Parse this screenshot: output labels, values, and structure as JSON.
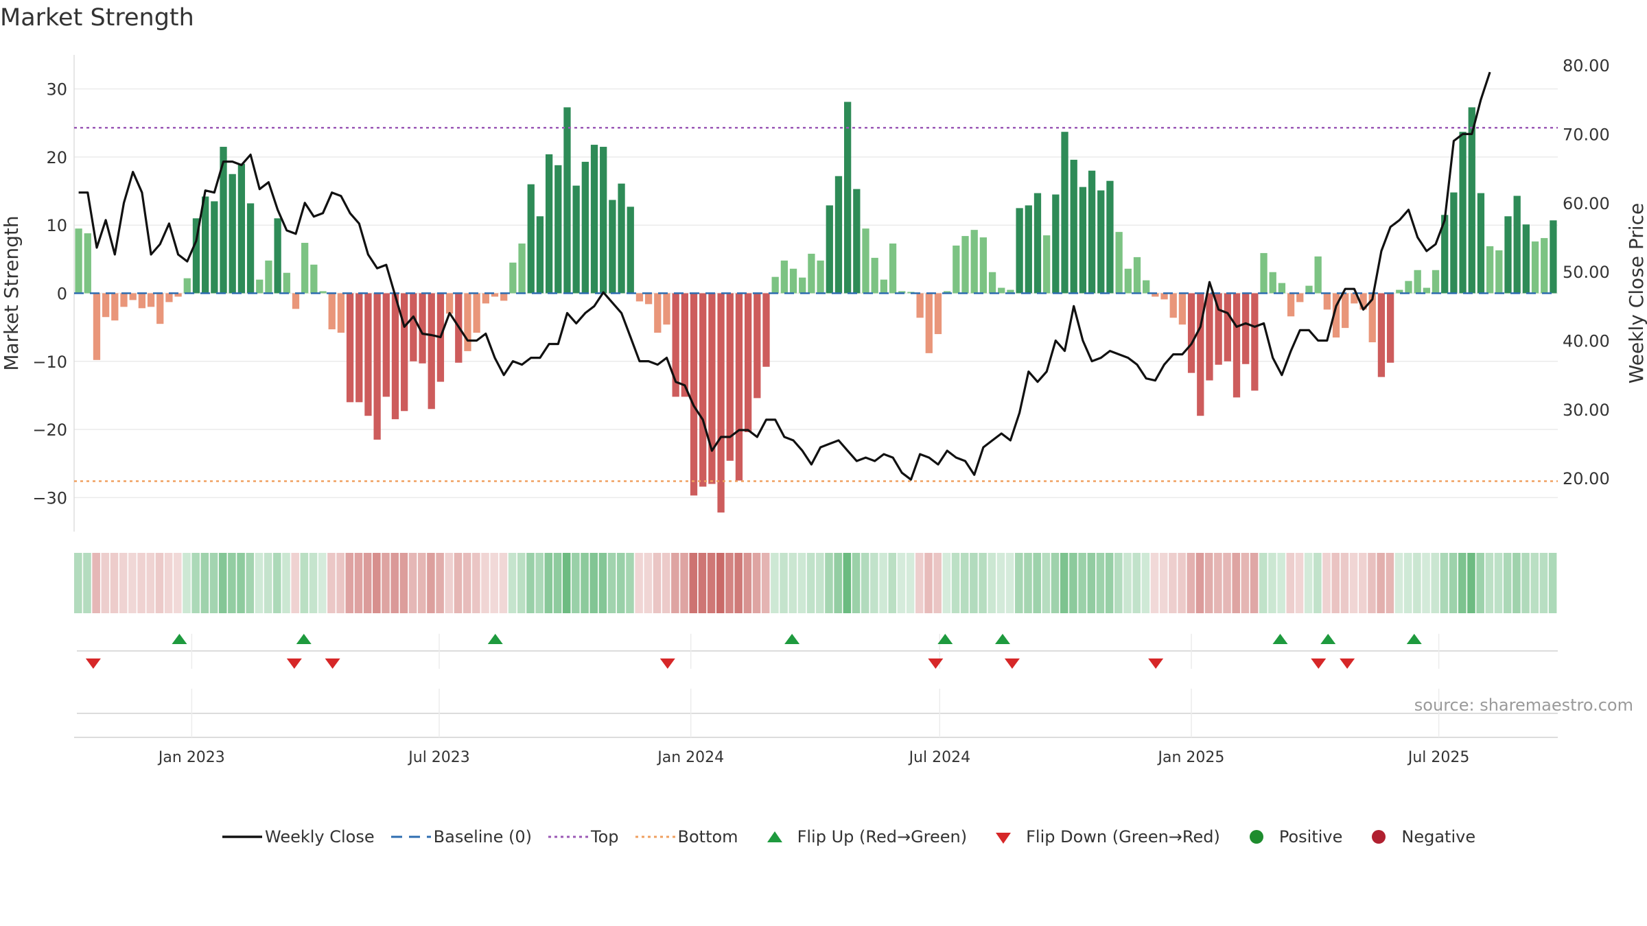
{
  "title": "Market Strength",
  "source_text": "source: sharemaestro.com",
  "legend": [
    {
      "label": "Weekly Close",
      "symbol": "solid-line",
      "color": "#111111"
    },
    {
      "label": "Baseline (0)",
      "symbol": "dash-line",
      "color": "#2e6db0"
    },
    {
      "label": "Top",
      "symbol": "dot-line",
      "color": "#9b59b6"
    },
    {
      "label": "Bottom",
      "symbol": "dot-line",
      "color": "#f0a060"
    },
    {
      "label": "Flip Up (Red→Green)",
      "symbol": "triangle-up",
      "color": "#1e9a3e"
    },
    {
      "label": "Flip Down (Green→Red)",
      "symbol": "triangle-down",
      "color": "#d62728"
    },
    {
      "label": "Positive",
      "symbol": "circle",
      "color": "#1e8c2e"
    },
    {
      "label": "Negative",
      "symbol": "circle",
      "color": "#b02030"
    }
  ],
  "chart_data": {
    "type": "bar",
    "ylabel": "Market Strength",
    "y2label": "Weekly Close Price",
    "ylim": [
      -35,
      35
    ],
    "y_ticks": [
      30,
      20,
      10,
      0,
      -10,
      -20,
      -30
    ],
    "y_tick_labels": [
      "30",
      "20",
      "10",
      "0",
      "−10",
      "−20",
      "−30"
    ],
    "y2lim": [
      12.25,
      81.5
    ],
    "y2_ticks": [
      80,
      70,
      60,
      50,
      40,
      30,
      20
    ],
    "y2_tick_labels": [
      "80.00",
      "70.00",
      "60.00",
      "50.00",
      "40.00",
      "30.00",
      "20.00"
    ],
    "x_start": "2022-10-07",
    "x_end": "2025-09-26",
    "x_ticks": [
      "2023-01-01",
      "2023-07-01",
      "2024-01-01",
      "2024-07-01",
      "2025-01-01",
      "2025-07-01"
    ],
    "x_tick_labels": [
      "Jan 2023",
      "Jul 2023",
      "Jan 2024",
      "Jul 2024",
      "Jan 2025",
      "Jul 2025"
    ],
    "top_threshold": 24.3,
    "bottom_threshold": -27.6,
    "baseline": 0,
    "grid": true,
    "legend_position": "bottom",
    "colors": {
      "strong_pos": "#2e8b57",
      "weak_pos": "#7cc383",
      "strong_neg": "#cd5c5c",
      "weak_neg": "#e9967a",
      "line": "#111111",
      "baseline": "#2e6db0",
      "top": "#9b59b6",
      "bottom": "#f0a060",
      "flip_up": "#1e9a3e",
      "flip_down": "#d62728"
    },
    "strength": [
      9.5,
      8.8,
      -9.8,
      -3.5,
      -4.0,
      -2.0,
      -1.0,
      -2.2,
      -2.0,
      -4.5,
      -1.3,
      -0.5,
      2.2,
      11.0,
      14.2,
      13.5,
      21.5,
      17.5,
      19.0,
      13.2,
      2.0,
      4.8,
      11.0,
      3.0,
      -2.3,
      7.4,
      4.2,
      0.3,
      -5.3,
      -5.8,
      -16.0,
      -16.0,
      -18.0,
      -21.5,
      -15.2,
      -18.5,
      -17.3,
      -10.0,
      -10.3,
      -17.0,
      -13.0,
      -3.0,
      -10.2,
      -8.5,
      -5.8,
      -1.5,
      -0.5,
      -1.1,
      4.5,
      7.3,
      16.0,
      11.3,
      20.4,
      18.8,
      27.3,
      15.8,
      19.3,
      21.8,
      21.5,
      13.7,
      16.1,
      12.7,
      -1.2,
      -1.6,
      -5.8,
      -4.6,
      -15.2,
      -15.2,
      -29.7,
      -28.4,
      -28.0,
      -32.2,
      -24.6,
      -27.5,
      -20.4,
      -15.4,
      -10.8,
      2.4,
      4.8,
      3.6,
      2.3,
      5.8,
      4.8,
      12.9,
      17.2,
      28.1,
      15.3,
      9.5,
      5.2,
      2.0,
      7.3,
      0.3,
      0.2,
      -3.6,
      -8.8,
      -6.0,
      0.3,
      7.0,
      8.4,
      9.3,
      8.2,
      3.1,
      0.8,
      0.5,
      12.5,
      12.9,
      14.7,
      8.5,
      14.5,
      23.7,
      19.6,
      15.6,
      18.0,
      15.1,
      16.5,
      9.0,
      3.6,
      5.3,
      1.9,
      -0.5,
      -0.9,
      -3.6,
      -4.6,
      -11.7,
      -18.0,
      -12.8,
      -10.5,
      -10.0,
      -15.3,
      -10.4,
      -14.3,
      5.9,
      3.1,
      1.5,
      -3.4,
      -1.3,
      1.1,
      5.4,
      -2.4,
      -6.5,
      -5.1,
      -1.5,
      -2.4,
      -7.2,
      -12.3,
      -10.2,
      0.5,
      1.8,
      3.4,
      0.8,
      3.4,
      11.5,
      14.8,
      23.7,
      27.3,
      14.7,
      6.9,
      6.3,
      11.3,
      14.3,
      10.1,
      7.6,
      8.1,
      10.7
    ],
    "weekly_close": [
      61.5,
      61.5,
      53.5,
      57.5,
      52.5,
      60.0,
      64.5,
      61.5,
      52.5,
      54.0,
      57.0,
      52.5,
      51.5,
      54.5,
      61.8,
      61.5,
      66.0,
      66.0,
      65.5,
      67.0,
      62.0,
      63.0,
      59.0,
      56.0,
      55.5,
      60.0,
      58.0,
      58.5,
      61.5,
      61.0,
      58.5,
      57.0,
      52.5,
      50.5,
      51.0,
      46.5,
      42.0,
      43.5,
      41.0,
      40.8,
      40.5,
      44.0,
      42.0,
      40.0,
      40.0,
      41.0,
      37.5,
      35.0,
      37.0,
      36.5,
      37.5,
      37.5,
      39.5,
      39.5,
      44.0,
      42.5,
      44.0,
      45.0,
      47.0,
      45.5,
      44.0,
      40.5,
      37.0,
      37.0,
      36.5,
      37.5,
      34.0,
      33.5,
      30.5,
      28.5,
      24.0,
      26.0,
      26.0,
      27.0,
      27.0,
      26.0,
      28.5,
      28.5,
      26.0,
      25.5,
      24.0,
      22.0,
      24.5,
      25.0,
      25.5,
      24.0,
      22.5,
      23.0,
      22.5,
      23.5,
      23.0,
      20.8,
      19.8,
      23.5,
      23.0,
      22.0,
      24.0,
      23.0,
      22.5,
      20.5,
      24.5,
      25.5,
      26.5,
      25.5,
      29.5,
      35.5,
      34.0,
      35.5,
      40.0,
      38.5,
      45.0,
      40.0,
      37.0,
      37.5,
      38.5,
      38.0,
      37.5,
      36.5,
      34.5,
      34.2,
      36.5,
      38.0,
      38.0,
      39.5,
      42.0,
      48.5,
      44.5,
      44.0,
      42.0,
      42.5,
      42.0,
      42.5,
      37.5,
      35.0,
      38.5,
      41.5,
      41.5,
      40.0,
      40.0,
      45.0,
      47.5,
      47.5,
      44.5,
      46.0,
      53.0,
      56.5,
      57.5,
      59.0,
      55.0,
      53.0,
      54.0,
      57.5,
      69.0,
      70.0,
      70.0,
      75.0,
      79.0
    ],
    "flip_up_dates": [
      "2022-12-23",
      "2023-03-24",
      "2023-08-11",
      "2024-03-15",
      "2024-07-05",
      "2024-08-16",
      "2025-03-07",
      "2025-04-11",
      "2025-06-13"
    ],
    "flip_down_dates": [
      "2022-10-21",
      "2023-03-17",
      "2023-04-14",
      "2023-12-15",
      "2024-06-28",
      "2024-08-23",
      "2024-12-06",
      "2025-04-04",
      "2025-04-25"
    ]
  }
}
